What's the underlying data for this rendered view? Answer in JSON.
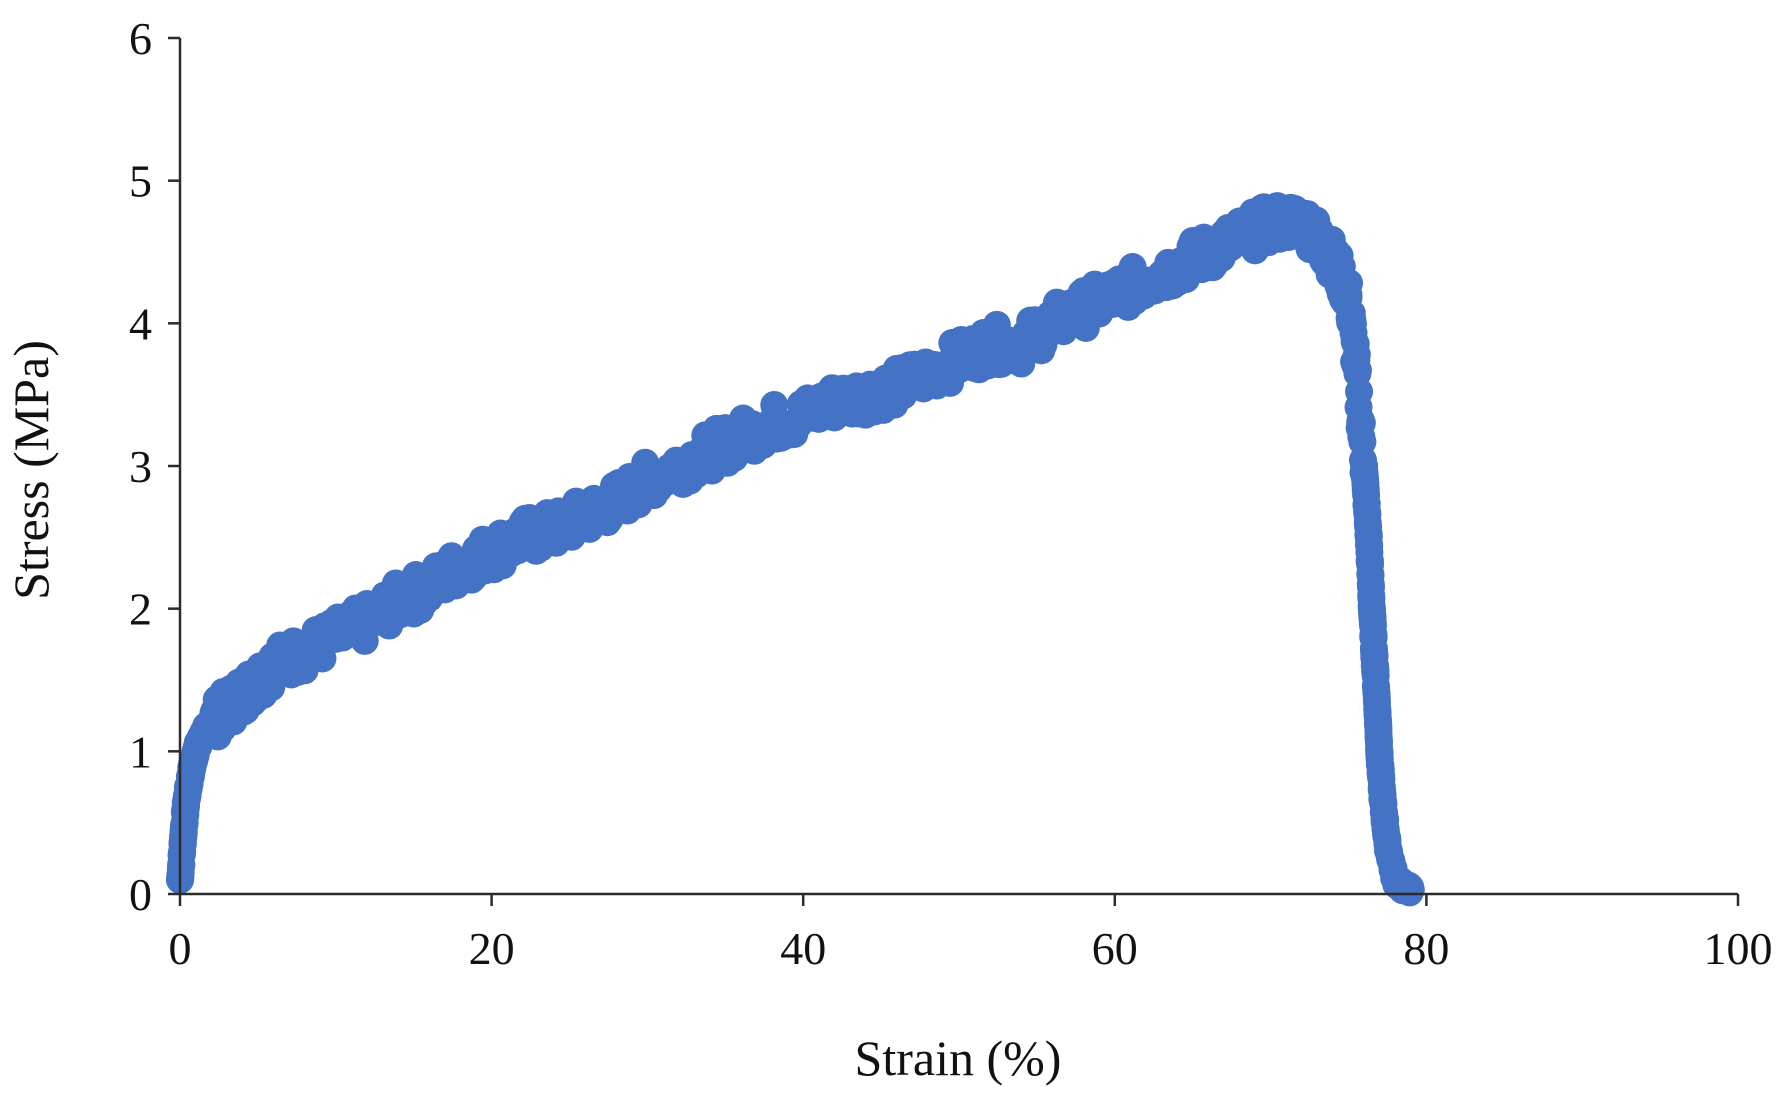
{
  "chart_data": {
    "type": "scatter",
    "xlabel": "Strain (%)",
    "ylabel": "Stress (MPa)",
    "xlim": [
      0,
      100
    ],
    "ylim": [
      0,
      6
    ],
    "xticks": [
      0,
      20,
      40,
      60,
      80,
      100
    ],
    "yticks": [
      0,
      1,
      2,
      3,
      4,
      5,
      6
    ],
    "grid": false,
    "legend": "none",
    "marker_color": "#4472C4",
    "series": [
      {
        "x": [
          0,
          0.2,
          0.4,
          0.7,
          1,
          1.5,
          2,
          3,
          4,
          5,
          6,
          8,
          10,
          12,
          14,
          16,
          18,
          20,
          22,
          24,
          26,
          28,
          30,
          32,
          34,
          36,
          38,
          40,
          42,
          44,
          46,
          48,
          50,
          52,
          54,
          56,
          58,
          60,
          62,
          64,
          66,
          68,
          70,
          72,
          73,
          74,
          75,
          75.5,
          76,
          76.3,
          76.5,
          76.7,
          76.9,
          77,
          77.2,
          77.5,
          78,
          78.5,
          79
        ],
        "y": [
          0.1,
          0.4,
          0.65,
          0.85,
          1.0,
          1.12,
          1.2,
          1.3,
          1.4,
          1.5,
          1.6,
          1.7,
          1.8,
          1.9,
          2.05,
          2.15,
          2.3,
          2.4,
          2.5,
          2.55,
          2.65,
          2.75,
          2.9,
          3.0,
          3.1,
          3.2,
          3.3,
          3.35,
          3.45,
          3.5,
          3.55,
          3.65,
          3.75,
          3.85,
          3.85,
          4.0,
          4.1,
          4.2,
          4.3,
          4.4,
          4.5,
          4.6,
          4.7,
          4.72,
          4.6,
          4.45,
          4.2,
          3.7,
          3.0,
          2.5,
          2.0,
          1.6,
          1.2,
          0.95,
          0.65,
          0.35,
          0.1,
          0.05,
          0.03
        ]
      }
    ]
  }
}
